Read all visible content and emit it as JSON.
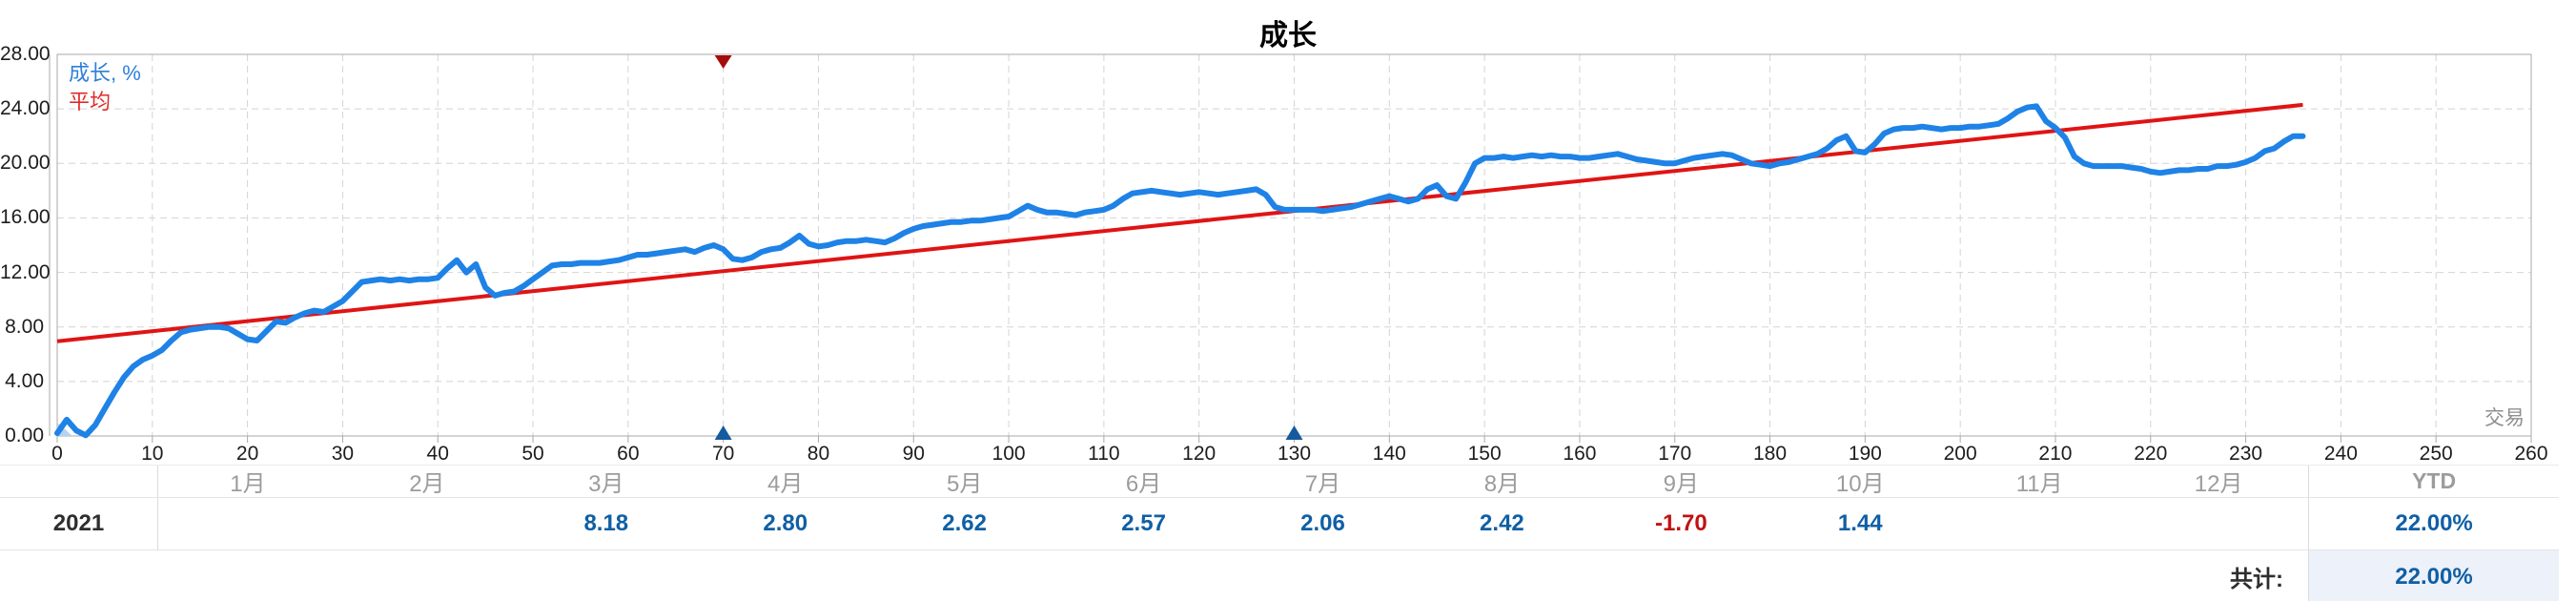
{
  "title": "成长",
  "legend": {
    "growth": "成长, %",
    "average": "平均"
  },
  "colors": {
    "growth_line": "#1e82e6",
    "average_line": "#e01414",
    "start_area": "#b5d3ee",
    "marker_red": "#a50d0d",
    "marker_blue": "#155a9e",
    "grid": "#d4d4d4",
    "plot_border": "#a9a9a9",
    "value_blue": "#0f5fa5",
    "value_red": "#c11212"
  },
  "chart_data": {
    "type": "line",
    "title": "成长",
    "xlabel": "交易",
    "ylabel": "成长, %",
    "xlim": [
      0,
      260
    ],
    "ylim": [
      0,
      28
    ],
    "x_ticks": [
      0,
      10,
      20,
      30,
      40,
      50,
      60,
      70,
      80,
      90,
      100,
      110,
      120,
      130,
      140,
      150,
      160,
      170,
      180,
      190,
      200,
      210,
      220,
      230,
      240,
      250,
      260
    ],
    "y_ticks": [
      "0.00",
      "4.00",
      "8.00",
      "12.00",
      "16.00",
      "20.00",
      "24.00",
      "28.00"
    ],
    "grid": "dashed",
    "legend_position": "top-left",
    "series": [
      {
        "name": "成长, %",
        "points": [
          [
            0,
            0.2
          ],
          [
            1,
            1.2
          ],
          [
            2,
            0.4
          ],
          [
            3,
            0.05
          ],
          [
            4,
            0.8
          ],
          [
            5,
            2.0
          ],
          [
            6,
            3.2
          ],
          [
            7,
            4.3
          ],
          [
            8,
            5.1
          ],
          [
            9,
            5.6
          ],
          [
            10,
            5.9
          ],
          [
            11,
            6.3
          ],
          [
            12,
            7.0
          ],
          [
            13,
            7.6
          ],
          [
            14,
            7.8
          ],
          [
            15,
            7.9
          ],
          [
            16,
            8.0
          ],
          [
            17,
            8.0
          ],
          [
            18,
            7.9
          ],
          [
            19,
            7.5
          ],
          [
            20,
            7.1
          ],
          [
            21,
            7.0
          ],
          [
            22,
            7.7
          ],
          [
            23,
            8.4
          ],
          [
            24,
            8.3
          ],
          [
            25,
            8.7
          ],
          [
            26,
            9.0
          ],
          [
            27,
            9.2
          ],
          [
            28,
            9.1
          ],
          [
            29,
            9.5
          ],
          [
            30,
            9.9
          ],
          [
            31,
            10.6
          ],
          [
            32,
            11.3
          ],
          [
            33,
            11.4
          ],
          [
            34,
            11.5
          ],
          [
            35,
            11.4
          ],
          [
            36,
            11.5
          ],
          [
            37,
            11.4
          ],
          [
            38,
            11.5
          ],
          [
            39,
            11.5
          ],
          [
            40,
            11.6
          ],
          [
            41,
            12.3
          ],
          [
            42,
            12.9
          ],
          [
            43,
            12.0
          ],
          [
            44,
            12.6
          ],
          [
            45,
            10.9
          ],
          [
            46,
            10.3
          ],
          [
            47,
            10.5
          ],
          [
            48,
            10.6
          ],
          [
            49,
            11.0
          ],
          [
            50,
            11.5
          ],
          [
            51,
            12.0
          ],
          [
            52,
            12.5
          ],
          [
            53,
            12.6
          ],
          [
            54,
            12.6
          ],
          [
            55,
            12.7
          ],
          [
            56,
            12.7
          ],
          [
            57,
            12.7
          ],
          [
            58,
            12.8
          ],
          [
            59,
            12.9
          ],
          [
            60,
            13.1
          ],
          [
            61,
            13.3
          ],
          [
            62,
            13.3
          ],
          [
            63,
            13.4
          ],
          [
            64,
            13.5
          ],
          [
            65,
            13.6
          ],
          [
            66,
            13.7
          ],
          [
            67,
            13.5
          ],
          [
            68,
            13.8
          ],
          [
            69,
            14.0
          ],
          [
            70,
            13.7
          ],
          [
            71,
            13.0
          ],
          [
            72,
            12.9
          ],
          [
            73,
            13.1
          ],
          [
            74,
            13.5
          ],
          [
            75,
            13.7
          ],
          [
            76,
            13.8
          ],
          [
            77,
            14.2
          ],
          [
            78,
            14.7
          ],
          [
            79,
            14.1
          ],
          [
            80,
            13.9
          ],
          [
            81,
            14.0
          ],
          [
            82,
            14.2
          ],
          [
            83,
            14.3
          ],
          [
            84,
            14.3
          ],
          [
            85,
            14.4
          ],
          [
            86,
            14.3
          ],
          [
            87,
            14.2
          ],
          [
            88,
            14.5
          ],
          [
            89,
            14.9
          ],
          [
            90,
            15.2
          ],
          [
            91,
            15.4
          ],
          [
            92,
            15.5
          ],
          [
            93,
            15.6
          ],
          [
            94,
            15.7
          ],
          [
            95,
            15.7
          ],
          [
            96,
            15.8
          ],
          [
            97,
            15.8
          ],
          [
            98,
            15.9
          ],
          [
            99,
            16.0
          ],
          [
            100,
            16.1
          ],
          [
            101,
            16.5
          ],
          [
            102,
            16.9
          ],
          [
            103,
            16.6
          ],
          [
            104,
            16.4
          ],
          [
            105,
            16.4
          ],
          [
            106,
            16.3
          ],
          [
            107,
            16.2
          ],
          [
            108,
            16.4
          ],
          [
            109,
            16.5
          ],
          [
            110,
            16.6
          ],
          [
            111,
            16.9
          ],
          [
            112,
            17.4
          ],
          [
            113,
            17.8
          ],
          [
            114,
            17.9
          ],
          [
            115,
            18.0
          ],
          [
            116,
            17.9
          ],
          [
            117,
            17.8
          ],
          [
            118,
            17.7
          ],
          [
            119,
            17.8
          ],
          [
            120,
            17.9
          ],
          [
            121,
            17.8
          ],
          [
            122,
            17.7
          ],
          [
            123,
            17.8
          ],
          [
            124,
            17.9
          ],
          [
            125,
            18.0
          ],
          [
            126,
            18.1
          ],
          [
            127,
            17.7
          ],
          [
            128,
            16.8
          ],
          [
            129,
            16.6
          ],
          [
            130,
            16.6
          ],
          [
            131,
            16.6
          ],
          [
            132,
            16.6
          ],
          [
            133,
            16.5
          ],
          [
            134,
            16.6
          ],
          [
            135,
            16.7
          ],
          [
            136,
            16.8
          ],
          [
            137,
            17.0
          ],
          [
            138,
            17.2
          ],
          [
            139,
            17.4
          ],
          [
            140,
            17.6
          ],
          [
            141,
            17.4
          ],
          [
            142,
            17.2
          ],
          [
            143,
            17.4
          ],
          [
            144,
            18.1
          ],
          [
            145,
            18.4
          ],
          [
            146,
            17.6
          ],
          [
            147,
            17.4
          ],
          [
            148,
            18.6
          ],
          [
            149,
            20.0
          ],
          [
            150,
            20.4
          ],
          [
            151,
            20.4
          ],
          [
            152,
            20.5
          ],
          [
            153,
            20.4
          ],
          [
            154,
            20.5
          ],
          [
            155,
            20.6
          ],
          [
            156,
            20.5
          ],
          [
            157,
            20.6
          ],
          [
            158,
            20.5
          ],
          [
            159,
            20.5
          ],
          [
            160,
            20.4
          ],
          [
            161,
            20.4
          ],
          [
            162,
            20.5
          ],
          [
            163,
            20.6
          ],
          [
            164,
            20.7
          ],
          [
            165,
            20.5
          ],
          [
            166,
            20.3
          ],
          [
            167,
            20.2
          ],
          [
            168,
            20.1
          ],
          [
            169,
            20.0
          ],
          [
            170,
            20.0
          ],
          [
            171,
            20.2
          ],
          [
            172,
            20.4
          ],
          [
            173,
            20.5
          ],
          [
            174,
            20.6
          ],
          [
            175,
            20.7
          ],
          [
            176,
            20.6
          ],
          [
            177,
            20.3
          ],
          [
            178,
            20.0
          ],
          [
            179,
            19.9
          ],
          [
            180,
            19.8
          ],
          [
            181,
            20.0
          ],
          [
            182,
            20.1
          ],
          [
            183,
            20.3
          ],
          [
            184,
            20.5
          ],
          [
            185,
            20.7
          ],
          [
            186,
            21.1
          ],
          [
            187,
            21.7
          ],
          [
            188,
            22.0
          ],
          [
            189,
            20.9
          ],
          [
            190,
            20.8
          ],
          [
            191,
            21.4
          ],
          [
            192,
            22.2
          ],
          [
            193,
            22.5
          ],
          [
            194,
            22.6
          ],
          [
            195,
            22.6
          ],
          [
            196,
            22.7
          ],
          [
            197,
            22.6
          ],
          [
            198,
            22.5
          ],
          [
            199,
            22.6
          ],
          [
            200,
            22.6
          ],
          [
            201,
            22.7
          ],
          [
            202,
            22.7
          ],
          [
            203,
            22.8
          ],
          [
            204,
            22.9
          ],
          [
            205,
            23.3
          ],
          [
            206,
            23.8
          ],
          [
            207,
            24.1
          ],
          [
            208,
            24.2
          ],
          [
            209,
            23.1
          ],
          [
            210,
            22.6
          ],
          [
            211,
            21.9
          ],
          [
            212,
            20.5
          ],
          [
            213,
            20.0
          ],
          [
            214,
            19.8
          ],
          [
            215,
            19.8
          ],
          [
            216,
            19.8
          ],
          [
            217,
            19.8
          ],
          [
            218,
            19.7
          ],
          [
            219,
            19.6
          ],
          [
            220,
            19.4
          ],
          [
            221,
            19.3
          ],
          [
            222,
            19.4
          ],
          [
            223,
            19.5
          ],
          [
            224,
            19.5
          ],
          [
            225,
            19.6
          ],
          [
            226,
            19.6
          ],
          [
            227,
            19.8
          ],
          [
            228,
            19.8
          ],
          [
            229,
            19.9
          ],
          [
            230,
            20.1
          ],
          [
            231,
            20.4
          ],
          [
            232,
            20.9
          ],
          [
            233,
            21.1
          ],
          [
            234,
            21.6
          ],
          [
            235,
            22.0
          ],
          [
            236,
            22.0
          ]
        ]
      },
      {
        "name": "平均",
        "points": [
          [
            0,
            6.95
          ],
          [
            236,
            24.3
          ]
        ]
      }
    ],
    "markers": [
      {
        "shape": "triangle-down",
        "x": 70,
        "position": "top",
        "color": "#a50d0d"
      },
      {
        "shape": "triangle-up",
        "x": 70,
        "position": "bottom",
        "color": "#155a9e"
      },
      {
        "shape": "triangle-up",
        "x": 130,
        "position": "bottom",
        "color": "#155a9e"
      }
    ]
  },
  "axis": {
    "x_title": "交易"
  },
  "table": {
    "months": [
      "1月",
      "2月",
      "3月",
      "4月",
      "5月",
      "6月",
      "7月",
      "8月",
      "9月",
      "10月",
      "11月",
      "12月"
    ],
    "ytd_header": "YTD",
    "rows": [
      {
        "year": "2021",
        "values": [
          "",
          "",
          "8.18",
          "2.80",
          "2.62",
          "2.57",
          "2.06",
          "2.42",
          "-1.70",
          "1.44",
          "",
          ""
        ],
        "ytd": "22.00%"
      }
    ],
    "total_label": "共计:",
    "total_ytd": "22.00%"
  }
}
